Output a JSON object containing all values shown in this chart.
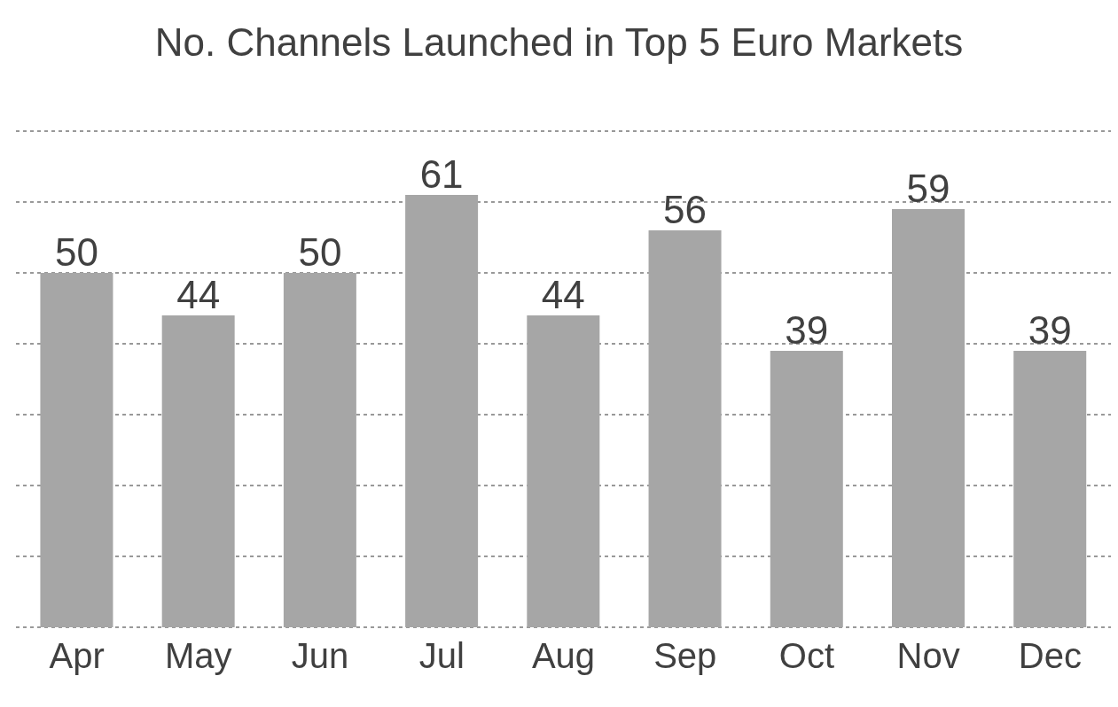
{
  "chart_data": {
    "type": "bar",
    "title": "No. Channels Launched in Top 5 Euro Markets",
    "categories": [
      "Apr",
      "May",
      "Jun",
      "Jul",
      "Aug",
      "Sep",
      "Oct",
      "Nov",
      "Dec"
    ],
    "values": [
      50,
      44,
      50,
      61,
      44,
      56,
      39,
      59,
      39
    ],
    "color": "#a6a6a6",
    "ylim": [
      0,
      70
    ],
    "yticks": [
      {
        "value": 0,
        "label": null
      },
      {
        "value": 10,
        "label": null
      },
      {
        "value": 20,
        "label": null
      },
      {
        "value": 30,
        "label": null
      },
      {
        "value": 40,
        "label": null
      },
      {
        "value": 50,
        "label": null
      },
      {
        "value": 60,
        "label": null
      },
      {
        "value": 70,
        "label": null
      }
    ],
    "grid": "y",
    "tick_labels": "x",
    "data_labels": true,
    "legend": false
  }
}
